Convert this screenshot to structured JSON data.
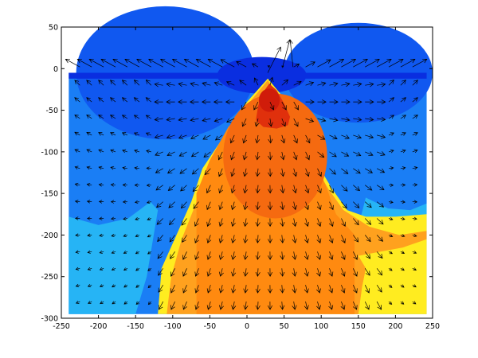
{
  "chart_data": {
    "type": "heatmap",
    "title": "",
    "xlabel": "",
    "ylabel": "",
    "xlim": [
      -250,
      250
    ],
    "ylim": [
      -300,
      50
    ],
    "x_ticks": [
      -250,
      -200,
      -150,
      -100,
      -50,
      0,
      50,
      100,
      150,
      200,
      250
    ],
    "y_ticks": [
      50,
      0,
      -50,
      -100,
      -150,
      -200,
      -250,
      -300
    ],
    "x_tick_labels": [
      "-250",
      "-200",
      "-150",
      "-100",
      "-50",
      "0",
      "50",
      "100",
      "150",
      "200",
      "250"
    ],
    "y_tick_labels": [
      "50",
      "0",
      "-50",
      "-100",
      "-150",
      "-200",
      "-250",
      "-300"
    ],
    "field_extent": {
      "x": [
        -240,
        242
      ],
      "y": [
        -295,
        -5
      ]
    },
    "overlay": "quiver",
    "overlay_color": "#000000",
    "grid": false,
    "colorbar": false,
    "regions": [
      {
        "name": "surface-band",
        "color": "#0a2ee0"
      },
      {
        "name": "upper-left-dome",
        "color": "#1058f0"
      },
      {
        "name": "upper-right-dome",
        "color": "#1058f0"
      },
      {
        "name": "mantle-blue",
        "color": "#1a7ef5"
      },
      {
        "name": "cold-margin",
        "color": "#26b4f5"
      },
      {
        "name": "transition-yellow",
        "color": "#ffec20"
      },
      {
        "name": "plume-orange",
        "color": "#ffa11e"
      },
      {
        "name": "plume-inner",
        "color": "#ff8a10"
      },
      {
        "name": "plume-core",
        "color": "#f56a10"
      },
      {
        "name": "plume-tip",
        "color": "#e0300c"
      }
    ]
  }
}
